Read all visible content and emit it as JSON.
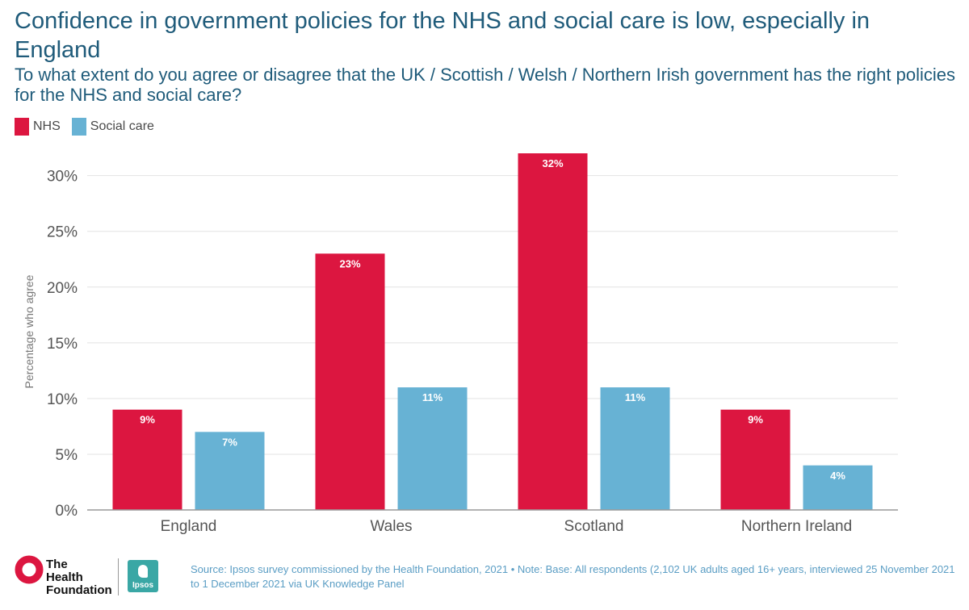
{
  "header": {
    "title": "Confidence in government policies for the NHS and social care is low, especially in England",
    "subtitle": "To what extent do you agree or disagree that the UK / Scottish / Welsh / Northern Irish government has the right policies for the NHS and social care?"
  },
  "legend": {
    "items": [
      {
        "label": "NHS",
        "color": "#dc1640"
      },
      {
        "label": "Social care",
        "color": "#67b2d4"
      }
    ]
  },
  "chart_data": {
    "type": "bar",
    "title": "Confidence in government policies for the NHS and social care is low, especially in England",
    "xlabel": "",
    "ylabel": "Percentage who agree",
    "categories": [
      "England",
      "Wales",
      "Scotland",
      "Northern Ireland"
    ],
    "series": [
      {
        "name": "NHS",
        "color": "#dc1640",
        "values": [
          9,
          23,
          32,
          9
        ],
        "labels": [
          "9%",
          "23%",
          "32%",
          "9%"
        ]
      },
      {
        "name": "Social care",
        "color": "#67b2d4",
        "values": [
          7,
          11,
          11,
          4
        ],
        "labels": [
          "7%",
          "11%",
          "11%",
          "4%"
        ]
      }
    ],
    "ylim": [
      0,
      32
    ],
    "yticks": [
      0,
      5,
      10,
      15,
      20,
      25,
      30
    ],
    "ytick_labels": [
      "0%",
      "5%",
      "10%",
      "15%",
      "20%",
      "25%",
      "30%"
    ],
    "grid": true,
    "legend_position": "top-left"
  },
  "footer": {
    "logo_line1": "The",
    "logo_line2": "Health",
    "logo_line3": "Foundation",
    "ipsos_label": "Ipsos",
    "source": "Source: Ipsos survey commissioned by the Health Foundation, 2021 • Note: Base: All respondents (2,102 UK adults aged 16+ years, interviewed 25 November 2021 to 1 December 2021 via UK Knowledge Panel"
  }
}
